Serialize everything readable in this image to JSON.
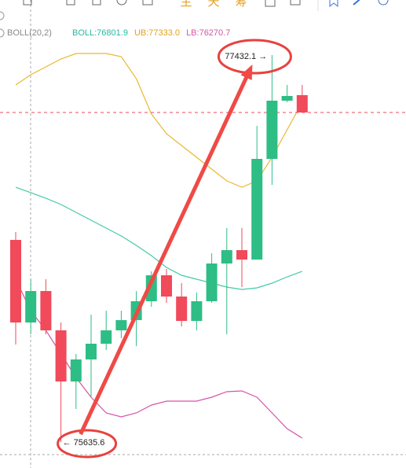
{
  "toolbar": {
    "buttons": [
      "主",
      "天",
      "筹"
    ]
  },
  "chart_data": {
    "type": "candlestick",
    "indicator": "BOLL(20,2)",
    "legend_items": [
      {
        "text": "BOLL:76801.9",
        "color": "#2bb8a0"
      },
      {
        "text": "UB:77333.0",
        "color": "#e3a21a"
      },
      {
        "text": "LB:76270.7",
        "color": "#d455a8"
      }
    ],
    "ylim": [
      75515.3,
      77687.7
    ],
    "up_color": "#2ebd85",
    "down_color": "#f04a5b",
    "open": [
      76574.1,
      76190.8,
      76336.8,
      76154.3,
      75916.9,
      76019.2,
      76092.2,
      76154.3,
      76201.7,
      76289.3,
      76409.8,
      76311.2,
      76198.0,
      76289.3,
      76464.6,
      76526.6,
      76482.8,
      76950.2,
      77220.3,
      77245.9
    ],
    "high": [
      76610.6,
      76391.6,
      76391.6,
      76190.8,
      76044.7,
      76227.3,
      76245.6,
      76245.6,
      76336.8,
      76428.1,
      76439.0,
      76373.3,
      76329.5,
      76512.0,
      76628.9,
      76628.9,
      77103.5,
      77432.1,
      77293.4,
      77293.4
    ],
    "low": [
      76088.5,
      76136.0,
      76136.0,
      75635.6,
      75789.1,
      75843.9,
      76063.0,
      76117.7,
      76081.2,
      76263.8,
      76282.0,
      76172.5,
      76154.3,
      76282.0,
      76136.0,
      76355.0,
      76482.8,
      76829.7,
      77213.0,
      77165.6
    ],
    "close": [
      76190.8,
      76336.8,
      76154.3,
      75916.9,
      76019.2,
      76092.2,
      76154.3,
      76201.7,
      76289.3,
      76409.8,
      76311.2,
      76198.0,
      76289.3,
      76464.6,
      76526.6,
      76482.8,
      76950.2,
      77220.3,
      77242.2,
      77165.6
    ],
    "bands": [
      {
        "color": "#e8b92e",
        "values": [
          77293.4,
          77340.8,
          77377.3,
          77413.8,
          77439.4,
          77439.4,
          77439.4,
          77424.8,
          77322.6,
          77158.3,
          77067.0,
          77012.2,
          76957.5,
          76902.7,
          76847.9,
          76818.7,
          76847.9,
          76957.5,
          77085.3,
          77213.0
        ]
      },
      {
        "color": "#46c9a8",
        "values": [
          76818.7,
          76793.2,
          76767.6,
          76738.4,
          76701.9,
          76665.4,
          76628.9,
          76592.4,
          76548.6,
          76501.1,
          76446.3,
          76409.8,
          76391.6,
          76373.3,
          76355.0,
          76344.1,
          76351.4,
          76373.3,
          76402.5,
          76428.1
        ]
      },
      {
        "color": "#d455a8",
        "values": [
          76391.6,
          76245.6,
          76154.3,
          76044.7,
          75935.2,
          75843.9,
          75770.9,
          75752.6,
          75770.9,
          75807.4,
          75825.7,
          75825.7,
          75825.7,
          75843.9,
          75869.5,
          75873.2,
          75843.9,
          75770.9,
          75697.9,
          75654.1
        ]
      }
    ],
    "annotations": [
      {
        "text": "77432.1 →",
        "index": 17
      },
      {
        "text": "← 75635.6",
        "index": 3
      }
    ]
  }
}
